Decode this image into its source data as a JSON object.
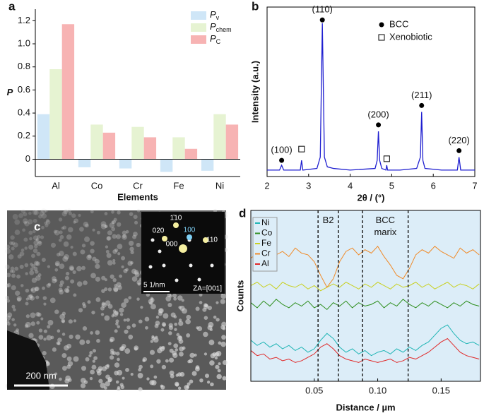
{
  "chart_data": [
    {
      "type": "bar",
      "panel_label": "a",
      "y_label": "P",
      "x_label": "Elements",
      "categories": [
        "Al",
        "Co",
        "Cr",
        "Fe",
        "Ni"
      ],
      "series": [
        {
          "name": "Pv",
          "color": "#cfe6f7",
          "values": [
            0.39,
            -0.07,
            -0.08,
            -0.11,
            -0.1
          ]
        },
        {
          "name": "Pchem",
          "color": "#e6f3d2",
          "values": [
            0.78,
            0.3,
            0.28,
            0.19,
            0.39
          ]
        },
        {
          "name": "PC",
          "color": "#f7b3b3",
          "values": [
            1.17,
            0.23,
            0.19,
            0.09,
            0.3
          ]
        }
      ],
      "ylim": [
        -0.15,
        1.3
      ],
      "yticks": [
        0,
        0.2,
        0.4,
        0.6,
        0.8,
        {
          "value": 1,
          "label": "1.0"
        },
        1.2
      ],
      "legend": "upper right"
    },
    {
      "type": "line",
      "panel_label": "b",
      "y_label": "Intensity (a.u.)",
      "x_label": "2θ / (°)",
      "color": "#1f1fd0",
      "x": [
        2.0,
        2.3,
        2.35,
        2.4,
        2.8,
        2.83,
        2.86,
        3.2,
        3.28,
        3.33,
        3.38,
        3.45,
        3.6,
        4.0,
        4.6,
        4.65,
        4.68,
        4.71,
        4.76,
        4.86,
        4.88,
        4.9,
        5.2,
        5.6,
        5.69,
        5.72,
        5.75,
        5.8,
        6.2,
        6.58,
        6.62,
        6.66,
        7.0
      ],
      "values": [
        4,
        4,
        7,
        4,
        4,
        10,
        4,
        5,
        12,
        95,
        12,
        6,
        5,
        4,
        5,
        10,
        28,
        10,
        5,
        4,
        7,
        4,
        4,
        5,
        12,
        40,
        10,
        5,
        4,
        4,
        12,
        4,
        4
      ],
      "xlim": [
        2,
        7
      ],
      "xticks": [
        2,
        3,
        4,
        5,
        6,
        7
      ],
      "ylim": [
        0,
        105
      ],
      "bcc_peaks": [
        {
          "label": "(100)",
          "x": 2.35,
          "y": 10
        },
        {
          "label": "(110)",
          "x": 3.33,
          "y": 97
        },
        {
          "label": "(200)",
          "x": 4.68,
          "y": 32
        },
        {
          "label": "(211)",
          "x": 5.72,
          "y": 44
        },
        {
          "label": "(220)",
          "x": 6.62,
          "y": 16
        }
      ],
      "xenobiotic_peaks": [
        {
          "x": 2.83,
          "y": 17
        },
        {
          "x": 4.88,
          "y": 11
        }
      ],
      "legend": [
        "BCC",
        "Xenobiotic"
      ]
    },
    {
      "type": "image",
      "panel_label": "c",
      "scale_bar": "200 nm",
      "inset_scale_bar": "5 1/nm",
      "zone_axis": "ZA=[001]",
      "spots": [
        "020",
        "1̄10",
        "100",
        "000",
        "110"
      ]
    },
    {
      "type": "multiline",
      "panel_label": "d",
      "y_label": "Counts",
      "x_label": "Distance / µm",
      "x": [
        0,
        0.005,
        0.01,
        0.015,
        0.02,
        0.025,
        0.03,
        0.035,
        0.04,
        0.045,
        0.05,
        0.055,
        0.06,
        0.065,
        0.07,
        0.075,
        0.08,
        0.085,
        0.09,
        0.095,
        0.1,
        0.105,
        0.11,
        0.115,
        0.12,
        0.125,
        0.13,
        0.135,
        0.14,
        0.145,
        0.15,
        0.155,
        0.16,
        0.165,
        0.17,
        0.175,
        0.18
      ],
      "series": [
        {
          "name": "Ni",
          "color": "#1fb5b5",
          "values": [
            24,
            21,
            23,
            20,
            22,
            19,
            21,
            18,
            20,
            17,
            19,
            24,
            28,
            25,
            20,
            17,
            19,
            16,
            18,
            15,
            17,
            18,
            16,
            19,
            17,
            20,
            18,
            21,
            23,
            27,
            31,
            33,
            28,
            24,
            22,
            23,
            21
          ]
        },
        {
          "name": "Co",
          "color": "#2f8f1f",
          "values": [
            46,
            43,
            47,
            44,
            48,
            45,
            43,
            46,
            44,
            47,
            43,
            45,
            42,
            46,
            44,
            47,
            43,
            46,
            44,
            45,
            47,
            43,
            46,
            44,
            48,
            45,
            43,
            46,
            44,
            47,
            45,
            43,
            46,
            44,
            47,
            45,
            44
          ]
        },
        {
          "name": "Fe",
          "color": "#c8d020",
          "values": [
            56,
            58,
            55,
            57,
            54,
            58,
            56,
            55,
            57,
            54,
            56,
            53,
            55,
            57,
            55,
            58,
            56,
            54,
            57,
            55,
            58,
            56,
            54,
            57,
            55,
            56,
            58,
            55,
            57,
            54,
            56,
            58,
            55,
            57,
            56,
            54,
            57
          ]
        },
        {
          "name": "Cr",
          "color": "#f08a28",
          "values": [
            72,
            75,
            73,
            77,
            74,
            76,
            73,
            78,
            75,
            74,
            70,
            62,
            55,
            60,
            70,
            76,
            78,
            74,
            77,
            75,
            79,
            73,
            68,
            62,
            60,
            66,
            74,
            77,
            75,
            79,
            76,
            74,
            72,
            78,
            75,
            77,
            74
          ]
        },
        {
          "name": "Al",
          "color": "#e02828",
          "values": [
            18,
            15,
            16,
            13,
            14,
            12,
            13,
            11,
            12,
            14,
            16,
            20,
            22,
            19,
            15,
            13,
            12,
            11,
            13,
            12,
            11,
            12,
            13,
            11,
            12,
            14,
            13,
            15,
            17,
            20,
            23,
            25,
            21,
            17,
            15,
            14,
            13
          ]
        }
      ],
      "xlim": [
        0,
        0.181
      ],
      "xticks": [
        0.05,
        {
          "value": 0.1,
          "label": "0.10"
        },
        0.15
      ],
      "ylim": [
        0,
        100
      ],
      "vlines": [
        0.053,
        0.069,
        0.088,
        0.124
      ],
      "annotations": [
        {
          "text": "B2",
          "x": 0.061,
          "y": 94
        },
        {
          "text": "BCC",
          "x": 0.106,
          "y": 94
        },
        {
          "text": "marix",
          "x": 0.106,
          "y": 87
        }
      ],
      "legend": "upper left"
    }
  ]
}
